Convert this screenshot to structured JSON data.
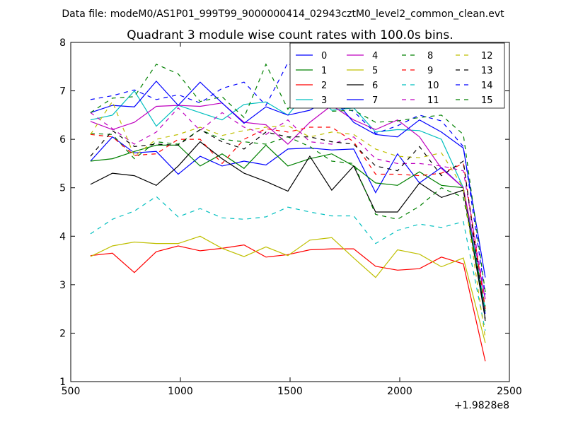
{
  "header_text": "Data file: modeM0/AS1P01_999T99_9000000414_02943cztM0_level2_common_clean.evt",
  "offset_label": "+1.9828e8",
  "colors": {
    "background": "#ffffff",
    "axes": "#000000"
  },
  "chart_data": {
    "type": "line",
    "title": "Quadrant 3 module wise count rates with 100.0s bins.",
    "xlabel": "",
    "ylabel": "",
    "xlim": [
      500,
      2500
    ],
    "ylim": [
      1,
      8
    ],
    "xticks": [
      500,
      1000,
      1500,
      2000,
      2500
    ],
    "yticks": [
      1,
      2,
      3,
      4,
      5,
      6,
      7,
      8
    ],
    "x": [
      590,
      690,
      790,
      890,
      990,
      1090,
      1190,
      1290,
      1390,
      1490,
      1590,
      1690,
      1790,
      1890,
      1990,
      2090,
      2190,
      2290,
      2390
    ],
    "legend_location": "upper right",
    "legend_columns": 4,
    "series": [
      {
        "name": "0",
        "color": "#0000ff",
        "dash": "solid",
        "values": [
          5.55,
          6.05,
          5.72,
          5.75,
          5.28,
          5.65,
          5.45,
          5.55,
          5.47,
          5.8,
          5.82,
          5.78,
          5.8,
          4.9,
          5.7,
          5.1,
          5.42,
          5.0,
          2.4
        ]
      },
      {
        "name": "1",
        "color": "#008000",
        "dash": "solid",
        "values": [
          5.55,
          5.6,
          5.75,
          5.88,
          5.88,
          5.45,
          5.7,
          5.4,
          5.88,
          5.45,
          5.6,
          5.7,
          5.45,
          5.1,
          5.05,
          5.33,
          5.05,
          5.0,
          2.45
        ]
      },
      {
        "name": "2",
        "color": "#ff0000",
        "dash": "solid",
        "values": [
          3.6,
          3.65,
          3.25,
          3.68,
          3.8,
          3.7,
          3.75,
          3.82,
          3.57,
          3.62,
          3.72,
          3.74,
          3.74,
          3.38,
          3.3,
          3.33,
          3.57,
          3.43,
          1.42
        ]
      },
      {
        "name": "3",
        "color": "#00bfbf",
        "dash": "solid",
        "values": [
          6.4,
          6.5,
          7.0,
          6.27,
          6.7,
          6.55,
          6.4,
          6.72,
          6.77,
          6.5,
          7.05,
          6.6,
          6.65,
          6.15,
          6.2,
          6.18,
          6.0,
          5.0,
          2.5
        ]
      },
      {
        "name": "4",
        "color": "#bf00bf",
        "dash": "solid",
        "values": [
          6.37,
          6.2,
          6.35,
          6.68,
          6.7,
          6.68,
          6.75,
          6.35,
          6.3,
          5.9,
          6.35,
          6.7,
          6.4,
          6.2,
          6.4,
          6.05,
          5.4,
          5.0,
          2.7
        ]
      },
      {
        "name": "5",
        "color": "#bfbf00",
        "dash": "solid",
        "values": [
          3.58,
          3.8,
          3.88,
          3.85,
          3.85,
          4.0,
          3.75,
          3.58,
          3.78,
          3.6,
          3.92,
          3.97,
          3.55,
          3.15,
          3.72,
          3.63,
          3.37,
          3.55,
          1.8
        ]
      },
      {
        "name": "6",
        "color": "#000000",
        "dash": "solid",
        "values": [
          5.07,
          5.3,
          5.25,
          5.05,
          5.45,
          5.95,
          5.6,
          5.3,
          5.13,
          4.93,
          5.65,
          4.95,
          5.45,
          4.5,
          4.5,
          5.1,
          4.8,
          4.95,
          2.3
        ]
      },
      {
        "name": "7",
        "color": "#0000ff",
        "dash": "solid",
        "values": [
          6.55,
          6.7,
          6.67,
          7.2,
          6.7,
          7.18,
          6.75,
          6.33,
          6.67,
          6.5,
          6.6,
          6.88,
          6.35,
          6.1,
          6.05,
          6.4,
          6.15,
          5.82,
          3.15
        ]
      },
      {
        "name": "8",
        "color": "#008000",
        "dash": "dashed",
        "values": [
          6.12,
          6.1,
          5.6,
          5.95,
          5.9,
          6.2,
          6.0,
          5.95,
          5.9,
          6.05,
          5.85,
          5.55,
          5.5,
          4.45,
          4.35,
          4.62,
          5.0,
          4.8,
          2.55
        ]
      },
      {
        "name": "9",
        "color": "#ff0000",
        "dash": "dashed",
        "values": [
          6.1,
          6.05,
          5.67,
          5.7,
          6.0,
          6.0,
          5.5,
          6.0,
          6.22,
          6.15,
          6.25,
          6.25,
          5.95,
          5.28,
          5.28,
          5.25,
          5.3,
          5.5,
          2.5
        ]
      },
      {
        "name": "10",
        "color": "#00bfbf",
        "dash": "dashed",
        "values": [
          4.05,
          4.35,
          4.52,
          4.82,
          4.4,
          4.57,
          4.38,
          4.35,
          4.4,
          4.6,
          4.5,
          4.42,
          4.42,
          3.85,
          4.12,
          4.25,
          4.18,
          4.3,
          2.05
        ]
      },
      {
        "name": "11",
        "color": "#bf00bf",
        "dash": "dashed",
        "values": [
          6.55,
          6.22,
          5.9,
          6.15,
          6.65,
          6.18,
          6.55,
          6.25,
          6.1,
          6.4,
          5.95,
          5.9,
          6.05,
          5.6,
          5.5,
          5.5,
          5.45,
          5.35,
          2.7
        ]
      },
      {
        "name": "12",
        "color": "#bfbf00",
        "dash": "dashed",
        "values": [
          6.1,
          6.78,
          5.65,
          6.0,
          6.1,
          6.25,
          6.08,
          6.18,
          6.25,
          6.28,
          6.05,
          6.15,
          6.1,
          5.8,
          5.65,
          5.62,
          5.72,
          5.0,
          1.9
        ]
      },
      {
        "name": "13",
        "color": "#000000",
        "dash": "dashed",
        "values": [
          5.65,
          6.18,
          5.85,
          5.9,
          5.88,
          6.2,
          5.95,
          5.8,
          6.15,
          6.05,
          6.05,
          5.95,
          5.9,
          5.45,
          5.35,
          5.85,
          5.25,
          5.55,
          2.25
        ]
      },
      {
        "name": "14",
        "color": "#0000ff",
        "dash": "dashed",
        "values": [
          6.82,
          6.9,
          7.02,
          6.82,
          6.92,
          6.75,
          7.05,
          7.18,
          6.7,
          7.58,
          7.2,
          6.72,
          6.58,
          6.12,
          6.28,
          6.5,
          6.38,
          5.85,
          2.8
        ]
      },
      {
        "name": "15",
        "color": "#008000",
        "dash": "dashed",
        "values": [
          6.55,
          6.85,
          6.88,
          7.55,
          7.35,
          6.78,
          6.88,
          6.45,
          7.55,
          6.62,
          7.22,
          6.58,
          6.6,
          6.35,
          6.38,
          6.45,
          6.5,
          6.1,
          2.85
        ]
      }
    ]
  }
}
